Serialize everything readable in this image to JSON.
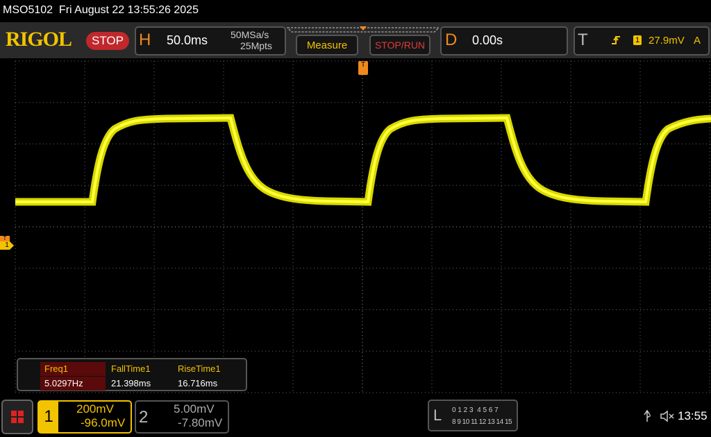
{
  "status_bar": {
    "title": "MSO5102  Fri August 22 13:55:26 2025"
  },
  "toolbar": {
    "logo": "RIGOL",
    "run_state": "STOP",
    "horizontal": {
      "label": "H",
      "timebase": "50.0ms",
      "sample_rate": "50MSa/s",
      "memory_depth": "25Mpts"
    },
    "measure_button": "Measure",
    "stop_run_button": "STOP/RUN",
    "delay": {
      "label": "D",
      "value": "0.00s"
    },
    "trigger": {
      "label": "T",
      "source": "1",
      "level": "27.9mV",
      "mode": "A"
    }
  },
  "markers": {
    "trigger_position": "T",
    "channel_marker_trigger": "T",
    "channel_marker": "1"
  },
  "measurements": {
    "headers": [
      "Freq1",
      "FallTime1",
      "RiseTime1"
    ],
    "values": [
      "5.0297Hz",
      "21.398ms",
      "16.716ms"
    ]
  },
  "channels": [
    {
      "number": "1",
      "scale": "200mV",
      "offset": "-96.0mV"
    },
    {
      "number": "2",
      "scale": "5.00mV",
      "offset": "-7.80mV"
    }
  ],
  "logic": {
    "label": "L",
    "row1": "0 1 2 3  4 5 6 7",
    "row2": "8 9 10 11 12 13 14 15"
  },
  "clock": "13:55"
}
